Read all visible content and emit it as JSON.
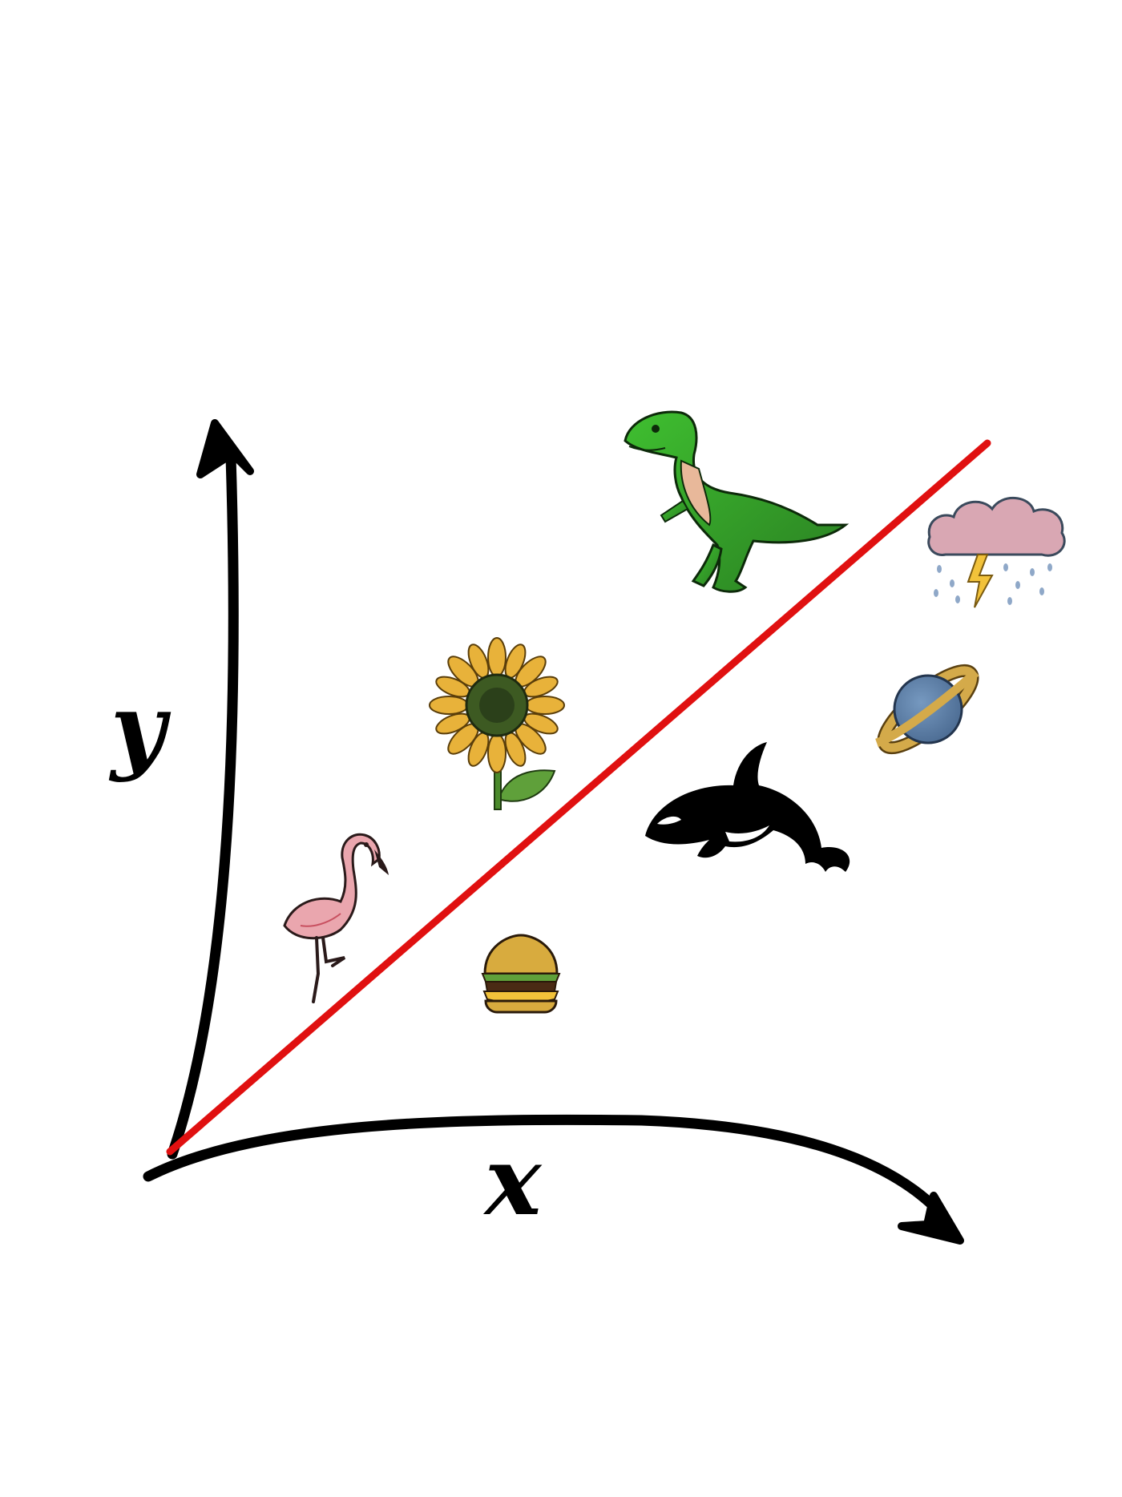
{
  "axes": {
    "x_label": "x",
    "y_label": "y",
    "axis_color": "#000000",
    "line_color": "#e01010"
  },
  "items": [
    {
      "name": "dinosaur",
      "icon": "dinosaur-icon",
      "side": "above-line"
    },
    {
      "name": "storm-cloud",
      "icon": "storm-cloud-icon",
      "side": "below-line"
    },
    {
      "name": "sunflower",
      "icon": "sunflower-icon",
      "side": "above-line"
    },
    {
      "name": "planet",
      "icon": "planet-icon",
      "side": "below-line"
    },
    {
      "name": "orca",
      "icon": "orca-icon",
      "side": "below-line"
    },
    {
      "name": "flamingo",
      "icon": "flamingo-icon",
      "side": "above-line"
    },
    {
      "name": "burger",
      "icon": "burger-icon",
      "side": "below-line"
    }
  ],
  "colors": {
    "dino_green": "#2fa52a",
    "dino_belly": "#e8b89a",
    "cloud": "#d9a7b3",
    "bolt": "#f2c23a",
    "sunflower_petal": "#e8b23a",
    "sunflower_center": "#3d5a22",
    "planet_body": "#5d7fa6",
    "planet_ring": "#d4aa4a",
    "flamingo": "#eaa6ae",
    "burger_bun": "#d8ab3e",
    "orca": "#000000"
  }
}
